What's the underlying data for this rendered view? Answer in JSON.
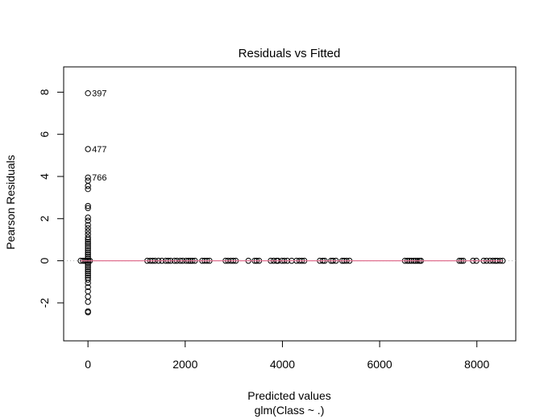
{
  "chart_data": {
    "type": "scatter",
    "title": "Residuals vs Fitted",
    "xlabel": "Predicted values",
    "xsublabel": "glm(Class ~ .)",
    "ylabel": "Pearson Residuals",
    "xlim": [
      -500,
      8800
    ],
    "ylim": [
      -3.8,
      9.2
    ],
    "xticks": [
      0,
      2000,
      4000,
      6000,
      8000
    ],
    "yticks": [
      -2,
      0,
      2,
      4,
      6,
      8
    ],
    "xtick_labels": [
      "0",
      "2000",
      "4000",
      "6000",
      "8000"
    ],
    "ytick_labels": [
      "-2",
      "0",
      "2",
      "4",
      "6",
      "8"
    ],
    "grid": false,
    "smoother_color": "#e07090",
    "reference_line_color": "#b0b0b0",
    "labeled_points": [
      {
        "label": "397",
        "x": 0,
        "y": 7.95
      },
      {
        "label": "477",
        "x": 0,
        "y": 5.3
      },
      {
        "label": "766",
        "x": 0,
        "y": 3.95
      }
    ],
    "cluster_near_zero": {
      "x": 0,
      "y": [
        -2.45,
        -2.4,
        -1.95,
        -1.7,
        -1.45,
        -1.25,
        -1.05,
        -0.9,
        -0.8,
        -0.7,
        -0.6,
        -0.5,
        -0.4,
        -0.3,
        -0.2,
        -0.1,
        0,
        0.1,
        0.2,
        0.3,
        0.4,
        0.5,
        0.6,
        0.7,
        0.8,
        0.9,
        1.0,
        1.1,
        1.25,
        1.4,
        1.55,
        1.7,
        1.9,
        2.05,
        2.5,
        2.6,
        3.4,
        3.55,
        3.8,
        3.95,
        5.3,
        7.95
      ]
    },
    "points_on_zero_line": {
      "y": 0,
      "x": [
        -150,
        -100,
        -60,
        -30,
        10,
        40,
        1220,
        1280,
        1330,
        1380,
        1450,
        1520,
        1600,
        1650,
        1700,
        1780,
        1830,
        1900,
        1950,
        2020,
        2070,
        2110,
        2150,
        2200,
        2350,
        2400,
        2450,
        2500,
        2830,
        2880,
        2940,
        2990,
        3040,
        3300,
        3430,
        3470,
        3520,
        3760,
        3820,
        3880,
        3910,
        3990,
        4040,
        4100,
        4190,
        4290,
        4350,
        4400,
        4450,
        4770,
        4830,
        4870,
        5000,
        5040,
        5100,
        5230,
        5270,
        5320,
        5380,
        6520,
        6570,
        6610,
        6650,
        6700,
        6740,
        6780,
        6820,
        6850,
        7640,
        7680,
        7720,
        7920,
        7990,
        8140,
        8200,
        8270,
        8330,
        8380,
        8420,
        8480,
        8530
      ]
    }
  }
}
